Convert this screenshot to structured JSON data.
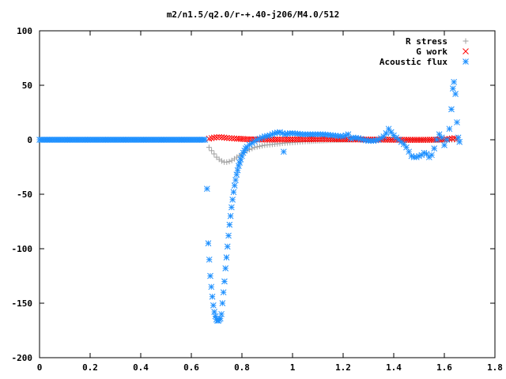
{
  "chart_data": {
    "type": "scatter",
    "title": "m2/n1.5/q2.0/r-+.40-j206/M4.0/512",
    "xlabel": "",
    "ylabel": "",
    "xlim": [
      0,
      1.8
    ],
    "ylim": [
      -200,
      100
    ],
    "x_ticks": [
      "0",
      "0.2",
      "0.4",
      "0.6",
      "0.8",
      "1",
      "1.2",
      "1.4",
      "1.6",
      "1.8"
    ],
    "y_ticks": [
      "100",
      "50",
      "0",
      "-50",
      "-100",
      "-150",
      "-200"
    ],
    "grid": false,
    "legend_position": "top-right",
    "series": [
      {
        "name": "R stress",
        "color": "#a0a0a0",
        "marker": "plus",
        "points": [
          [
            0.67,
            -7
          ],
          [
            0.68,
            -10
          ],
          [
            0.69,
            -13
          ],
          [
            0.7,
            -16
          ],
          [
            0.71,
            -18
          ],
          [
            0.72,
            -19.5
          ],
          [
            0.73,
            -20.5
          ],
          [
            0.74,
            -20.5
          ],
          [
            0.75,
            -20
          ],
          [
            0.76,
            -19
          ],
          [
            0.77,
            -17.5
          ],
          [
            0.78,
            -16
          ],
          [
            0.79,
            -14.5
          ],
          [
            0.8,
            -13
          ],
          [
            0.81,
            -11.5
          ],
          [
            0.82,
            -10
          ],
          [
            0.83,
            -9
          ],
          [
            0.84,
            -8
          ],
          [
            0.85,
            -7
          ],
          [
            0.87,
            -6
          ],
          [
            0.89,
            -5
          ],
          [
            0.91,
            -4.5
          ],
          [
            0.93,
            -4
          ],
          [
            0.95,
            -3.5
          ],
          [
            0.97,
            -3
          ],
          [
            1.0,
            -2.5
          ],
          [
            1.03,
            -2
          ],
          [
            1.06,
            -1.5
          ],
          [
            1.1,
            -1
          ],
          [
            1.14,
            -0.6
          ],
          [
            1.18,
            -0.3
          ],
          [
            1.22,
            0
          ],
          [
            1.26,
            0.2
          ],
          [
            1.3,
            0.3
          ],
          [
            1.34,
            0.3
          ],
          [
            1.38,
            0.2
          ],
          [
            1.42,
            0
          ],
          [
            1.46,
            -0.2
          ],
          [
            1.5,
            -0.3
          ],
          [
            1.54,
            -0.3
          ],
          [
            1.58,
            -0.2
          ],
          [
            1.62,
            -0.1
          ],
          [
            1.65,
            0
          ]
        ]
      },
      {
        "name": "G work",
        "color": "#ff0000",
        "marker": "cross",
        "points": [
          [
            0.67,
            1
          ],
          [
            0.69,
            2
          ],
          [
            0.71,
            2.5
          ],
          [
            0.73,
            2
          ],
          [
            0.75,
            1.5
          ],
          [
            0.78,
            1
          ],
          [
            0.82,
            0.5
          ],
          [
            0.86,
            0.3
          ],
          [
            0.9,
            0.2
          ],
          [
            0.95,
            0.2
          ],
          [
            1.0,
            0.3
          ],
          [
            1.05,
            0.4
          ],
          [
            1.1,
            0.5
          ],
          [
            1.15,
            0.5
          ],
          [
            1.2,
            0.4
          ],
          [
            1.25,
            0.3
          ],
          [
            1.3,
            0.2
          ],
          [
            1.35,
            0.1
          ],
          [
            1.4,
            0
          ],
          [
            1.45,
            -0.1
          ],
          [
            1.5,
            -0.1
          ],
          [
            1.55,
            0
          ],
          [
            1.6,
            0.3
          ],
          [
            1.62,
            0.8
          ],
          [
            1.64,
            1.5
          ],
          [
            1.65,
            0.5
          ]
        ]
      },
      {
        "name": "Acoustic flux",
        "color": "#1e90ff",
        "marker": "star",
        "points": [
          [
            0.662,
            -45
          ],
          [
            0.667,
            -95
          ],
          [
            0.671,
            -110
          ],
          [
            0.675,
            -125
          ],
          [
            0.679,
            -135
          ],
          [
            0.683,
            -144
          ],
          [
            0.687,
            -152
          ],
          [
            0.691,
            -158
          ],
          [
            0.695,
            -162
          ],
          [
            0.699,
            -165
          ],
          [
            0.703,
            -166
          ],
          [
            0.707,
            -166
          ],
          [
            0.711,
            -165
          ],
          [
            0.715,
            -164
          ],
          [
            0.719,
            -160
          ],
          [
            0.723,
            -150
          ],
          [
            0.727,
            -140
          ],
          [
            0.731,
            -130
          ],
          [
            0.735,
            -118
          ],
          [
            0.739,
            -108
          ],
          [
            0.743,
            -98
          ],
          [
            0.747,
            -88
          ],
          [
            0.751,
            -78
          ],
          [
            0.755,
            -70
          ],
          [
            0.759,
            -62
          ],
          [
            0.763,
            -55
          ],
          [
            0.767,
            -48
          ],
          [
            0.771,
            -42
          ],
          [
            0.775,
            -37
          ],
          [
            0.779,
            -32
          ],
          [
            0.783,
            -28
          ],
          [
            0.787,
            -24
          ],
          [
            0.791,
            -21
          ],
          [
            0.795,
            -18
          ],
          [
            0.8,
            -15
          ],
          [
            0.805,
            -12
          ],
          [
            0.81,
            -10
          ],
          [
            0.815,
            -8
          ],
          [
            0.82,
            -6.5
          ],
          [
            0.83,
            -4.5
          ],
          [
            0.84,
            -3
          ],
          [
            0.85,
            -1.5
          ],
          [
            0.86,
            0
          ],
          [
            0.87,
            1
          ],
          [
            0.88,
            2
          ],
          [
            0.89,
            3
          ],
          [
            0.9,
            3.5
          ],
          [
            0.91,
            4
          ],
          [
            0.92,
            5
          ],
          [
            0.93,
            6
          ],
          [
            0.94,
            6.5
          ],
          [
            0.95,
            7
          ],
          [
            0.96,
            6
          ],
          [
            0.965,
            -11
          ],
          [
            0.97,
            5
          ],
          [
            0.98,
            5.5
          ],
          [
            0.99,
            6
          ],
          [
            1.0,
            6
          ],
          [
            1.02,
            5.5
          ],
          [
            1.04,
            5
          ],
          [
            1.06,
            5
          ],
          [
            1.08,
            5
          ],
          [
            1.1,
            5
          ],
          [
            1.12,
            5
          ],
          [
            1.14,
            4.5
          ],
          [
            1.16,
            4
          ],
          [
            1.18,
            3.5
          ],
          [
            1.2,
            3
          ],
          [
            1.22,
            5
          ],
          [
            1.23,
            1
          ],
          [
            1.24,
            2
          ],
          [
            1.26,
            1.5
          ],
          [
            1.28,
            0
          ],
          [
            1.3,
            -1
          ],
          [
            1.32,
            -1
          ],
          [
            1.34,
            0
          ],
          [
            1.36,
            3
          ],
          [
            1.37,
            6
          ],
          [
            1.38,
            10
          ],
          [
            1.39,
            7
          ],
          [
            1.4,
            4
          ],
          [
            1.41,
            2
          ],
          [
            1.42,
            0
          ],
          [
            1.43,
            -2
          ],
          [
            1.44,
            -4
          ],
          [
            1.45,
            -7
          ],
          [
            1.46,
            -11
          ],
          [
            1.47,
            -15
          ],
          [
            1.48,
            -16
          ],
          [
            1.49,
            -16
          ],
          [
            1.5,
            -15
          ],
          [
            1.51,
            -14
          ],
          [
            1.52,
            -12
          ],
          [
            1.53,
            -13
          ],
          [
            1.54,
            -16
          ],
          [
            1.55,
            -14
          ],
          [
            1.56,
            -8
          ],
          [
            1.57,
            0
          ],
          [
            1.58,
            5
          ],
          [
            1.59,
            2
          ],
          [
            1.6,
            -5
          ],
          [
            1.61,
            0
          ],
          [
            1.62,
            10
          ],
          [
            1.628,
            28
          ],
          [
            1.634,
            47
          ],
          [
            1.638,
            53
          ],
          [
            1.644,
            42
          ],
          [
            1.65,
            16
          ],
          [
            1.655,
            2
          ],
          [
            1.66,
            -2
          ]
        ]
      }
    ]
  }
}
